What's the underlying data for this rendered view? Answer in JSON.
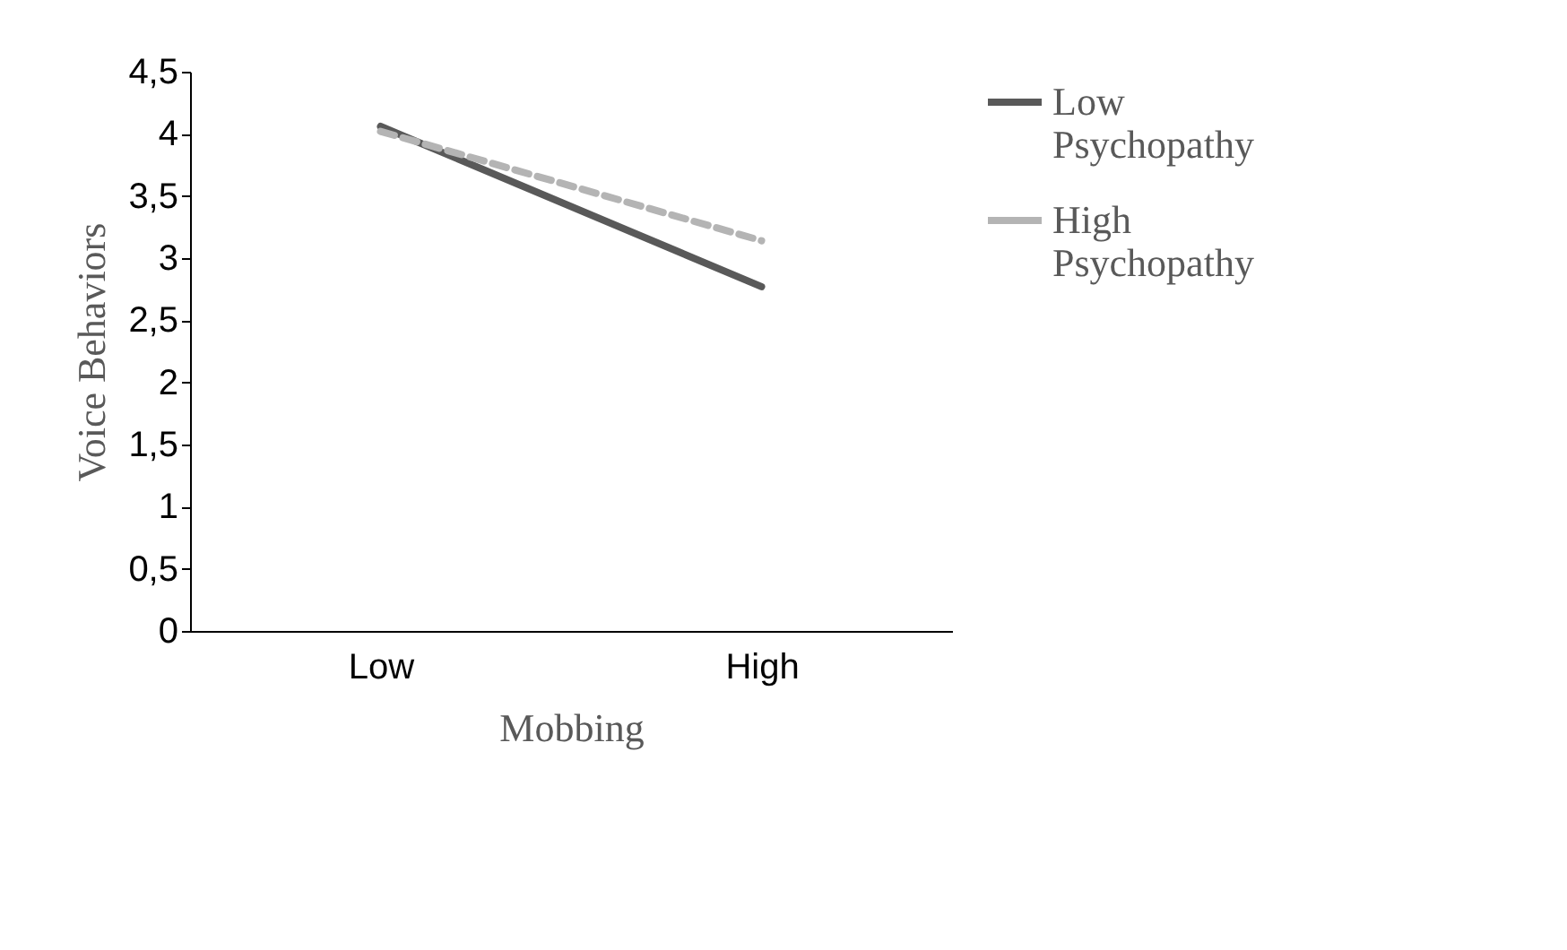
{
  "chart_data": {
    "type": "line",
    "xlabel": "Mobbing",
    "ylabel": "Voice Behaviors",
    "categories": [
      "Low",
      "High"
    ],
    "series": [
      {
        "name": "Low Psychopathy",
        "color": "#595959",
        "values": [
          4.06,
          2.77
        ],
        "line_style": "solid"
      },
      {
        "name": "High Psychopathy",
        "color": "#b4b4b4",
        "values": [
          4.02,
          3.14
        ],
        "line_style": "dashed"
      }
    ],
    "ylim": [
      0,
      4.5
    ],
    "yticks": [
      0,
      {
        "value": 0.5,
        "label": "0,5"
      },
      1,
      {
        "value": 1.5,
        "label": "1,5"
      },
      2,
      {
        "value": 2.5,
        "label": "2,5"
      },
      3,
      {
        "value": 3.5,
        "label": "3,5"
      },
      4,
      {
        "value": 4.5,
        "label": "4,5"
      }
    ],
    "grid": false,
    "legend": "right",
    "marker": "none"
  }
}
